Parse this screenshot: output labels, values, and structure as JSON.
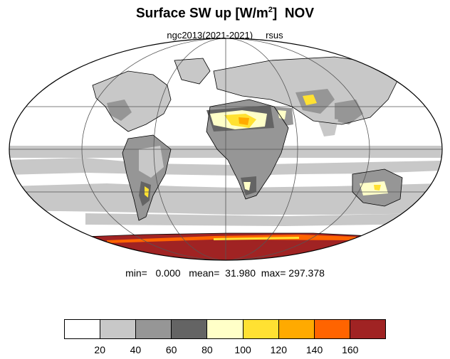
{
  "title": {
    "main": "Surface SW up [W/m",
    "sup": "2",
    "close": "]",
    "month": "NOV"
  },
  "subtitle": {
    "run": "ngc2013(2021-2021)",
    "variable": "rsus"
  },
  "stats": {
    "text": "min=   0.000   mean=  31.980  max= 297.378"
  },
  "colorbar": {
    "colors": [
      "#ffffff",
      "#c8c8c8",
      "#969696",
      "#646464",
      "#ffffc8",
      "#ffe132",
      "#ffaa00",
      "#ff6400",
      "#a02323"
    ],
    "labels": [
      "20",
      "40",
      "60",
      "80",
      "100",
      "120",
      "140",
      "160"
    ]
  }
}
